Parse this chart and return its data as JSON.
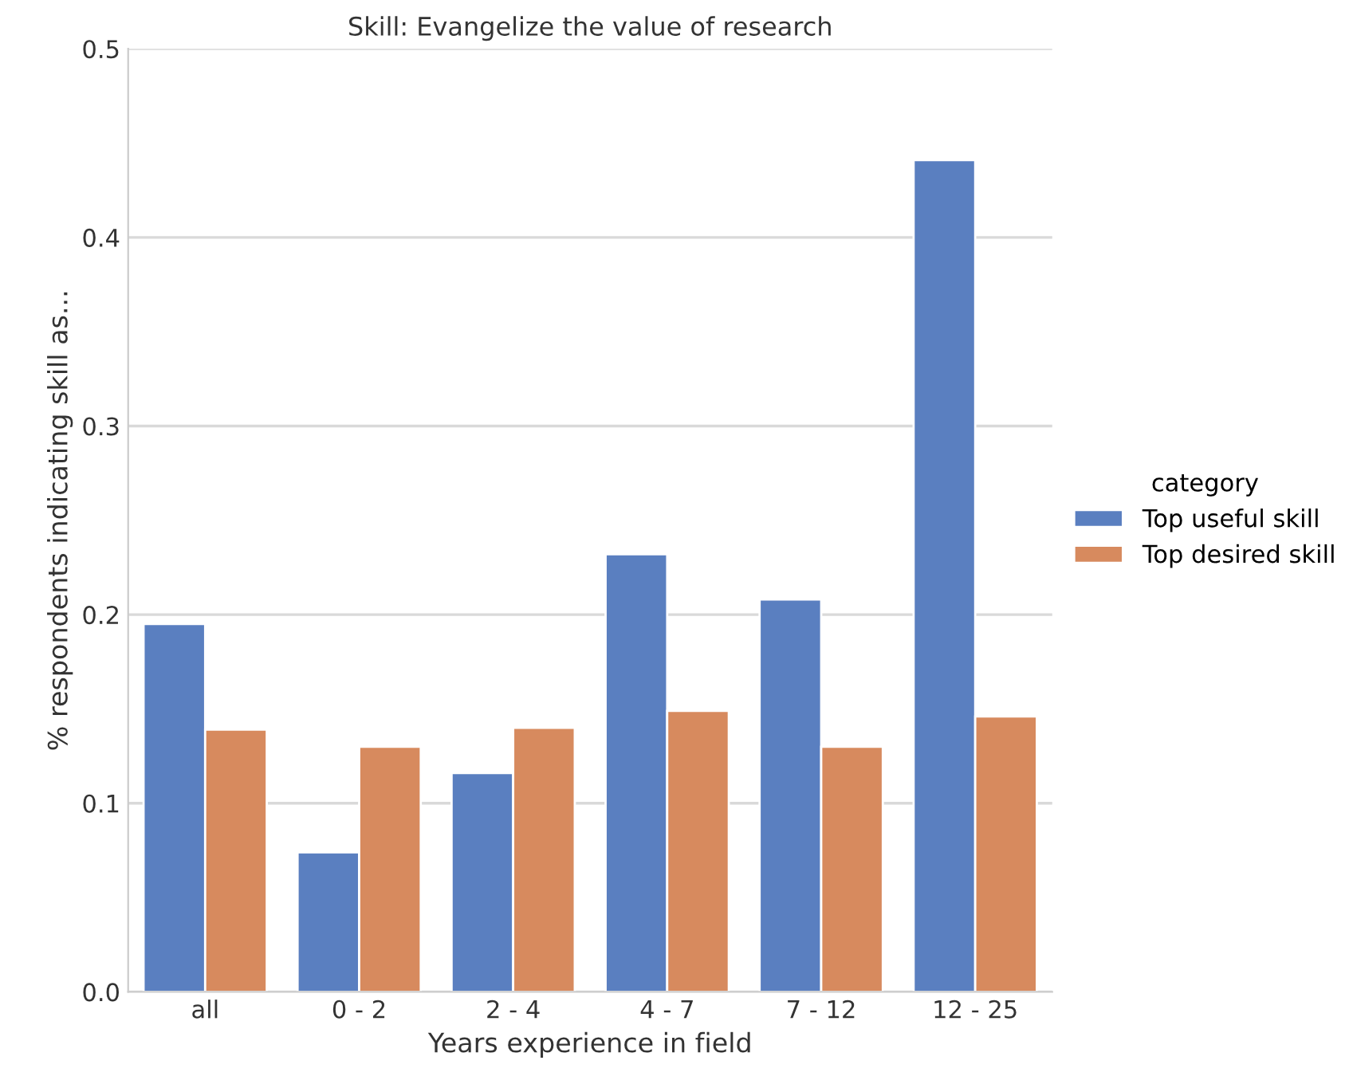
{
  "chart_data": {
    "type": "bar",
    "title": "Skill: Evangelize the value of research",
    "xlabel": "Years experience in field",
    "ylabel": "% respondents indicating skill as...",
    "legend_title": "category",
    "categories": [
      "all",
      "0 - 2",
      "2 - 4",
      "4 - 7",
      "7 - 12",
      "12 - 25"
    ],
    "series": [
      {
        "name": "Top useful skill",
        "color": "#5a7fc0",
        "values": [
          0.195,
          0.074,
          0.116,
          0.232,
          0.208,
          0.441
        ]
      },
      {
        "name": "Top desired skill",
        "color": "#d78a5e",
        "values": [
          0.139,
          0.13,
          0.14,
          0.149,
          0.13,
          0.146
        ]
      }
    ],
    "ylim": [
      0,
      0.5
    ],
    "yticks": [
      {
        "value": 0,
        "label": "0.0"
      },
      0.1,
      0.2,
      0.3,
      0.4,
      0.5
    ],
    "grid": "y",
    "legend": "right"
  }
}
